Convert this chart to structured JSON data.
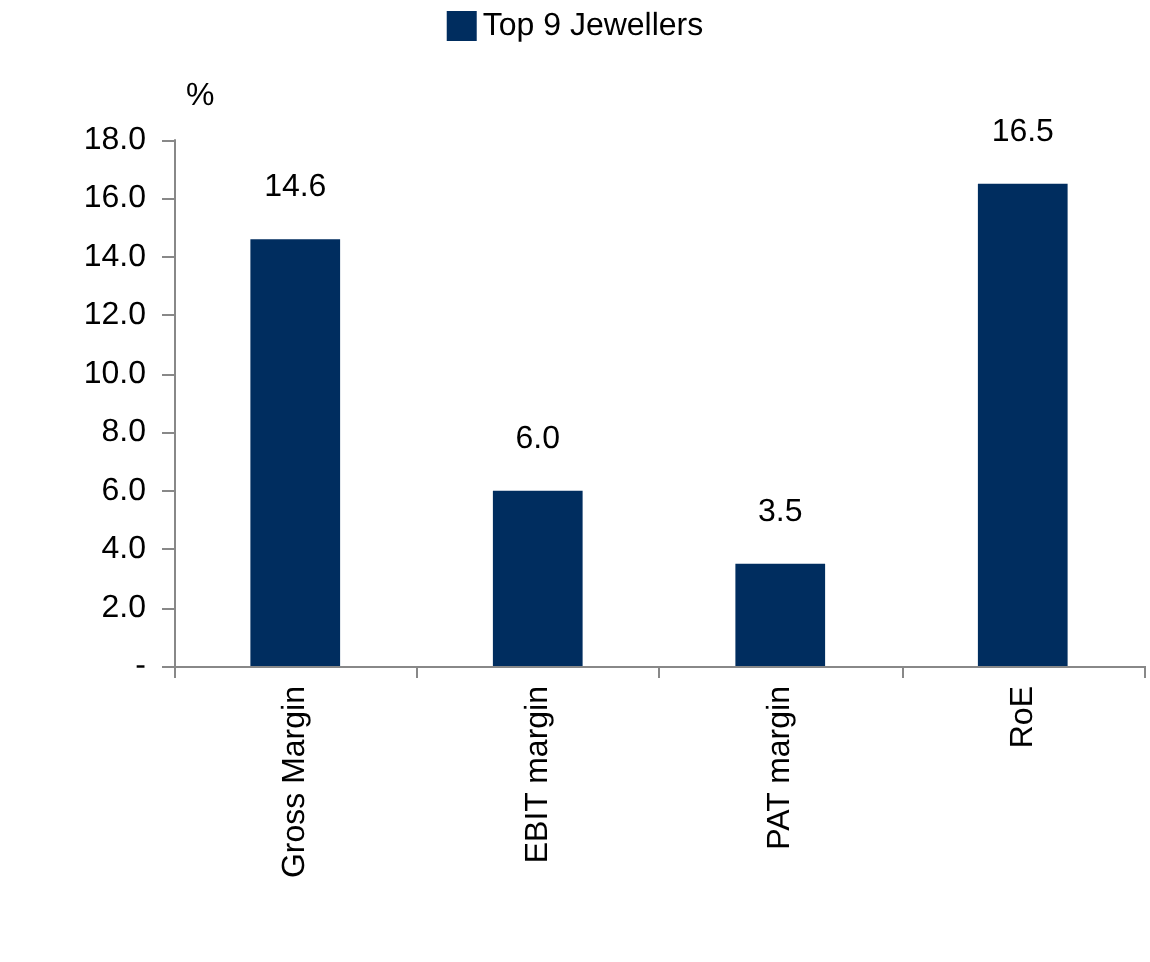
{
  "chart_data": {
    "type": "bar",
    "ylabel": "%",
    "categories": [
      "Gross Margin",
      "EBIT margin",
      "PAT margin",
      "RoE"
    ],
    "series": [
      {
        "name": "Top 9 Jewellers",
        "color": "#002d5f",
        "values": [
          14.6,
          6.0,
          3.5,
          16.5
        ],
        "value_labels": [
          "14.6",
          "6.0",
          "3.5",
          "16.5"
        ]
      }
    ],
    "ylim": [
      0,
      18
    ],
    "yticks": [
      {
        "value": 0,
        "label": "-"
      },
      {
        "value": 2,
        "label": "2.0"
      },
      {
        "value": 4,
        "label": "4.0"
      },
      {
        "value": 6,
        "label": "6.0"
      },
      {
        "value": 8,
        "label": "8.0"
      },
      {
        "value": 10,
        "label": "10.0"
      },
      {
        "value": 12,
        "label": "12.0"
      },
      {
        "value": 14,
        "label": "14.0"
      },
      {
        "value": 16,
        "label": "16.0"
      },
      {
        "value": 18,
        "label": "18.0"
      }
    ],
    "grid": false,
    "legend": "top"
  }
}
